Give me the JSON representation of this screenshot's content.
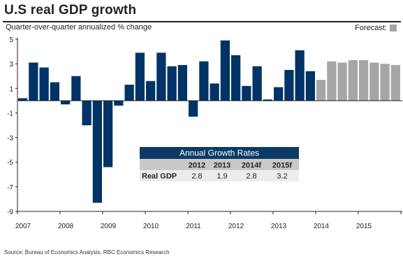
{
  "chart_data": {
    "type": "bar",
    "title": "U.S real GDP growth",
    "subtitle": "Quarter-over-quarter annualized % change",
    "ylim": [
      -9,
      5
    ],
    "yticks": [
      5,
      3,
      1,
      -1,
      -3,
      -5,
      -7,
      -9
    ],
    "xtick_labels": [
      "2007",
      "2008",
      "2009",
      "2010",
      "2011",
      "2012",
      "2013",
      "2014",
      "2015"
    ],
    "grid": false,
    "legend": {
      "label": "Forecast:",
      "position": "top-right"
    },
    "colors": {
      "actual": "#003366",
      "forecast": "#a6a6a6"
    },
    "quarters_start": "2007Q1",
    "values": [
      0.2,
      3.1,
      2.7,
      1.5,
      -0.3,
      2.0,
      -2.0,
      -8.3,
      -5.4,
      -0.4,
      1.3,
      3.9,
      1.6,
      3.9,
      2.8,
      2.9,
      -1.3,
      3.2,
      1.4,
      4.9,
      3.7,
      1.2,
      2.8,
      0.1,
      1.1,
      2.5,
      4.1,
      2.4
    ],
    "forecast_values": [
      1.7,
      3.2,
      3.1,
      3.3,
      3.3,
      3.1,
      3.0,
      2.9
    ]
  },
  "table": {
    "title": "Annual Growth Rates",
    "headers": [
      "",
      "2012",
      "2013",
      "2014f",
      "2015f"
    ],
    "row_label": "Real GDP",
    "row_values": [
      "2.8",
      "1.9",
      "2.8",
      "3.2"
    ]
  },
  "source": "Source: Bureau of Economics Analysis, RBC Economics Research"
}
